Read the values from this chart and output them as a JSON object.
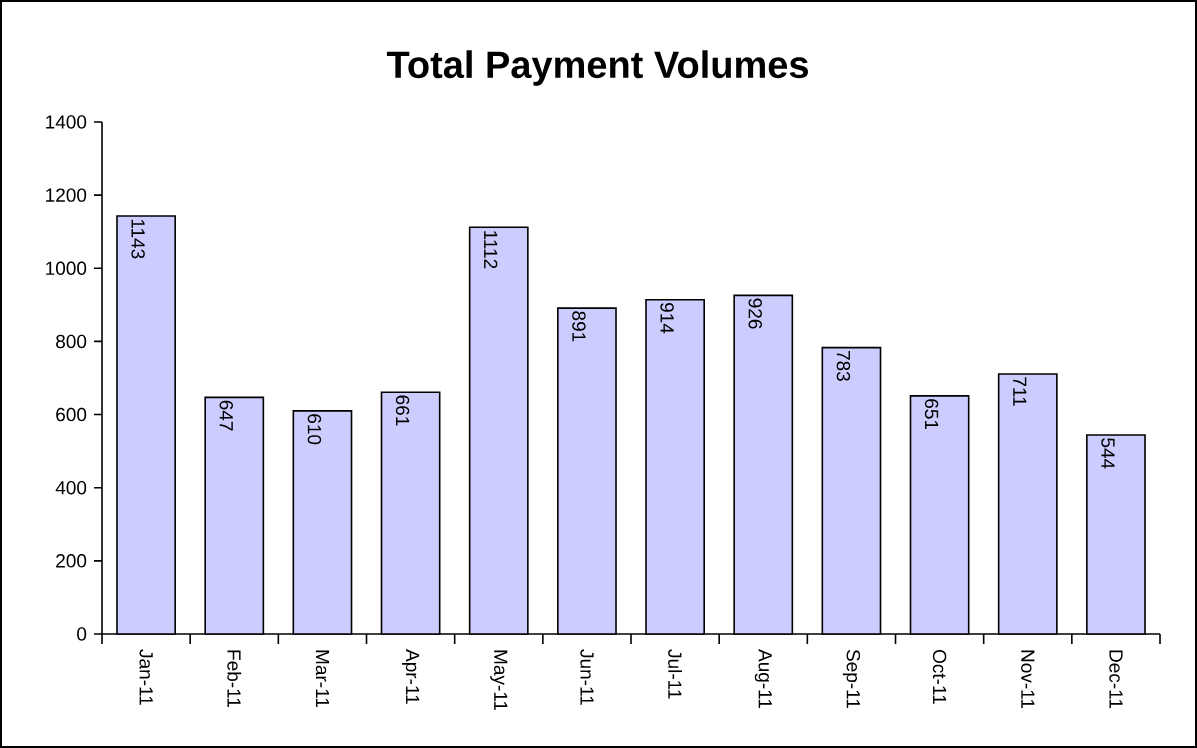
{
  "chart_data": {
    "type": "bar",
    "title": "Total Payment Volumes",
    "categories": [
      "Jan-11",
      "Feb-11",
      "Mar-11",
      "Apr-11",
      "May-11",
      "Jun-11",
      "Jul-11",
      "Aug-11",
      "Sep-11",
      "Oct-11",
      "Nov-11",
      "Dec-11"
    ],
    "values": [
      1143,
      647,
      610,
      661,
      1112,
      891,
      914,
      926,
      783,
      651,
      711,
      544
    ],
    "color": "#ccccff",
    "ylim": [
      0,
      1400
    ],
    "yticks": [
      0,
      200,
      400,
      600,
      800,
      1000,
      1200,
      1400
    ],
    "grid": false,
    "data_labels": true
  }
}
